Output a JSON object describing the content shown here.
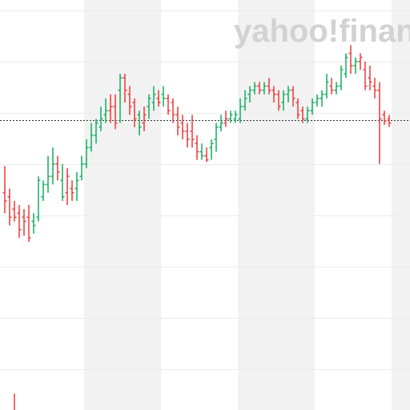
{
  "watermark": "yahoo!finance",
  "colors": {
    "up": "#1fb26b",
    "down": "#ef4444",
    "band": "#f2f2f2",
    "grid": "#ebebeb",
    "reference": "#333333",
    "watermark": "#d2d2d2",
    "background": "#ffffff"
  },
  "chart_data": {
    "type": "ohlc",
    "title": "",
    "xlabel": "",
    "ylabel": "",
    "ylim": [
      0,
      100
    ],
    "grid": true,
    "reference_level": 70.7,
    "shaded_bands_x_start": [
      16,
      48,
      80
    ],
    "bars": [
      {
        "x": 0,
        "o": 53,
        "h": 59.5,
        "l": 48,
        "c": 51,
        "dir": "down"
      },
      {
        "x": 1,
        "o": 52,
        "h": 54,
        "l": 45,
        "c": 47,
        "dir": "down"
      },
      {
        "x": 2,
        "o": 49,
        "h": 51,
        "l": 46,
        "c": 47,
        "dir": "down"
      },
      {
        "x": 3,
        "o": 48,
        "h": 50,
        "l": 42,
        "c": 44,
        "dir": "down"
      },
      {
        "x": 4,
        "o": 47,
        "h": 49,
        "l": 42.5,
        "c": 46,
        "dir": "down"
      },
      {
        "x": 5,
        "o": 47,
        "h": 50,
        "l": 41,
        "c": 42,
        "dir": "down"
      },
      {
        "x": 6,
        "o": 46,
        "h": 48,
        "l": 43,
        "c": 45,
        "dir": "up"
      },
      {
        "x": 7,
        "o": 47,
        "h": 57,
        "l": 46,
        "c": 56,
        "dir": "up"
      },
      {
        "x": 8,
        "o": 52,
        "h": 56,
        "l": 51,
        "c": 55,
        "dir": "up"
      },
      {
        "x": 9,
        "o": 55,
        "h": 62,
        "l": 53,
        "c": 57,
        "dir": "up"
      },
      {
        "x": 10,
        "o": 57,
        "h": 64,
        "l": 55,
        "c": 60,
        "dir": "up"
      },
      {
        "x": 11,
        "o": 60,
        "h": 62,
        "l": 56,
        "c": 58,
        "dir": "down"
      },
      {
        "x": 12,
        "o": 56,
        "h": 60,
        "l": 51,
        "c": 52,
        "dir": "up"
      },
      {
        "x": 13,
        "o": 53,
        "h": 59,
        "l": 50,
        "c": 57,
        "dir": "down"
      },
      {
        "x": 14,
        "o": 54,
        "h": 56,
        "l": 51,
        "c": 53,
        "dir": "down"
      },
      {
        "x": 15,
        "o": 54,
        "h": 58,
        "l": 51,
        "c": 56,
        "dir": "up"
      },
      {
        "x": 16,
        "o": 57,
        "h": 62,
        "l": 56,
        "c": 60,
        "dir": "up"
      },
      {
        "x": 17,
        "o": 60,
        "h": 66,
        "l": 59,
        "c": 64,
        "dir": "up"
      },
      {
        "x": 18,
        "o": 64,
        "h": 70,
        "l": 63,
        "c": 67,
        "dir": "up"
      },
      {
        "x": 19,
        "o": 67,
        "h": 71,
        "l": 65,
        "c": 70,
        "dir": "up"
      },
      {
        "x": 20,
        "o": 69,
        "h": 74,
        "l": 68,
        "c": 71,
        "dir": "up"
      },
      {
        "x": 21,
        "o": 72,
        "h": 76,
        "l": 70,
        "c": 73,
        "dir": "up"
      },
      {
        "x": 22,
        "o": 73,
        "h": 77,
        "l": 70,
        "c": 74,
        "dir": "down"
      },
      {
        "x": 23,
        "o": 74,
        "h": 77,
        "l": 68.5,
        "c": 70,
        "dir": "down"
      },
      {
        "x": 24,
        "o": 78,
        "h": 82,
        "l": 70,
        "c": 81,
        "dir": "up"
      },
      {
        "x": 25,
        "o": 81,
        "h": 82,
        "l": 75,
        "c": 78,
        "dir": "down"
      },
      {
        "x": 26,
        "o": 77,
        "h": 79,
        "l": 72,
        "c": 74,
        "dir": "down"
      },
      {
        "x": 27,
        "o": 75,
        "h": 76,
        "l": 69,
        "c": 71,
        "dir": "down"
      },
      {
        "x": 28,
        "o": 72,
        "h": 73,
        "l": 67,
        "c": 69,
        "dir": "up"
      },
      {
        "x": 29,
        "o": 70,
        "h": 74,
        "l": 68,
        "c": 72,
        "dir": "down"
      },
      {
        "x": 30,
        "o": 74,
        "h": 77,
        "l": 71,
        "c": 76,
        "dir": "up"
      },
      {
        "x": 31,
        "o": 75,
        "h": 79,
        "l": 73,
        "c": 77,
        "dir": "up"
      },
      {
        "x": 32,
        "o": 76,
        "h": 78,
        "l": 74,
        "c": 75,
        "dir": "down"
      },
      {
        "x": 33,
        "o": 77,
        "h": 79,
        "l": 74,
        "c": 76,
        "dir": "up"
      },
      {
        "x": 34,
        "o": 76,
        "h": 77,
        "l": 72,
        "c": 73,
        "dir": "down"
      },
      {
        "x": 35,
        "o": 75,
        "h": 76,
        "l": 70,
        "c": 72,
        "dir": "down"
      },
      {
        "x": 36,
        "o": 72,
        "h": 74,
        "l": 67,
        "c": 69,
        "dir": "down"
      },
      {
        "x": 37,
        "o": 70,
        "h": 72,
        "l": 66,
        "c": 68,
        "dir": "down"
      },
      {
        "x": 38,
        "o": 68,
        "h": 70,
        "l": 64,
        "c": 66,
        "dir": "down"
      },
      {
        "x": 39,
        "o": 68,
        "h": 72,
        "l": 64,
        "c": 66,
        "dir": "down"
      },
      {
        "x": 40,
        "o": 65,
        "h": 67,
        "l": 61,
        "c": 63,
        "dir": "down"
      },
      {
        "x": 41,
        "o": 63,
        "h": 65,
        "l": 61,
        "c": 62,
        "dir": "up"
      },
      {
        "x": 42,
        "o": 62,
        "h": 64,
        "l": 60.5,
        "c": 61,
        "dir": "down"
      },
      {
        "x": 43,
        "o": 64,
        "h": 66,
        "l": 61,
        "c": 65,
        "dir": "up"
      },
      {
        "x": 44,
        "o": 66,
        "h": 70,
        "l": 63,
        "c": 69,
        "dir": "up"
      },
      {
        "x": 45,
        "o": 69,
        "h": 72,
        "l": 68,
        "c": 70,
        "dir": "up"
      },
      {
        "x": 46,
        "o": 70,
        "h": 73,
        "l": 69,
        "c": 71,
        "dir": "down"
      },
      {
        "x": 47,
        "o": 71,
        "h": 73,
        "l": 70,
        "c": 72,
        "dir": "up"
      },
      {
        "x": 48,
        "o": 71,
        "h": 73,
        "l": 70,
        "c": 72,
        "dir": "up"
      },
      {
        "x": 49,
        "o": 71,
        "h": 76,
        "l": 70,
        "c": 74,
        "dir": "up"
      },
      {
        "x": 50,
        "o": 74,
        "h": 78,
        "l": 73,
        "c": 76,
        "dir": "up"
      },
      {
        "x": 51,
        "o": 77,
        "h": 79,
        "l": 75,
        "c": 78,
        "dir": "up"
      },
      {
        "x": 52,
        "o": 78,
        "h": 80,
        "l": 77,
        "c": 79,
        "dir": "up"
      },
      {
        "x": 53,
        "o": 79,
        "h": 80,
        "l": 77,
        "c": 78,
        "dir": "down"
      },
      {
        "x": 54,
        "o": 78,
        "h": 80,
        "l": 77,
        "c": 79,
        "dir": "up"
      },
      {
        "x": 55,
        "o": 79,
        "h": 81,
        "l": 77,
        "c": 78,
        "dir": "down"
      },
      {
        "x": 56,
        "o": 78,
        "h": 79,
        "l": 75,
        "c": 77,
        "dir": "down"
      },
      {
        "x": 57,
        "o": 77,
        "h": 78,
        "l": 73,
        "c": 74,
        "dir": "down"
      },
      {
        "x": 58,
        "o": 75,
        "h": 78,
        "l": 73,
        "c": 77,
        "dir": "up"
      },
      {
        "x": 59,
        "o": 77,
        "h": 79,
        "l": 75,
        "c": 78,
        "dir": "up"
      },
      {
        "x": 60,
        "o": 78,
        "h": 79,
        "l": 74,
        "c": 76,
        "dir": "down"
      },
      {
        "x": 61,
        "o": 75,
        "h": 76,
        "l": 71,
        "c": 72,
        "dir": "down"
      },
      {
        "x": 62,
        "o": 73,
        "h": 74,
        "l": 70,
        "c": 71,
        "dir": "down"
      },
      {
        "x": 63,
        "o": 71,
        "h": 74,
        "l": 70,
        "c": 73,
        "dir": "up"
      },
      {
        "x": 64,
        "o": 73,
        "h": 76,
        "l": 72,
        "c": 75,
        "dir": "up"
      },
      {
        "x": 65,
        "o": 75,
        "h": 77,
        "l": 74,
        "c": 76,
        "dir": "up"
      },
      {
        "x": 66,
        "o": 76,
        "h": 78,
        "l": 74,
        "c": 77,
        "dir": "up"
      },
      {
        "x": 67,
        "o": 77,
        "h": 82,
        "l": 76,
        "c": 80,
        "dir": "up"
      },
      {
        "x": 68,
        "o": 79,
        "h": 81,
        "l": 77,
        "c": 78,
        "dir": "down"
      },
      {
        "x": 69,
        "o": 78,
        "h": 80,
        "l": 77,
        "c": 79,
        "dir": "up"
      },
      {
        "x": 70,
        "o": 79,
        "h": 84,
        "l": 78,
        "c": 83,
        "dir": "up"
      },
      {
        "x": 71,
        "o": 82,
        "h": 87,
        "l": 81,
        "c": 86,
        "dir": "up"
      },
      {
        "x": 72,
        "o": 87,
        "h": 89,
        "l": 82,
        "c": 84,
        "dir": "down"
      },
      {
        "x": 73,
        "o": 84,
        "h": 86,
        "l": 82,
        "c": 85,
        "dir": "up"
      },
      {
        "x": 74,
        "o": 85,
        "h": 87,
        "l": 83,
        "c": 86,
        "dir": "down"
      },
      {
        "x": 75,
        "o": 83,
        "h": 85,
        "l": 78,
        "c": 79,
        "dir": "down"
      },
      {
        "x": 76,
        "o": 81,
        "h": 84,
        "l": 78,
        "c": 80,
        "dir": "down"
      },
      {
        "x": 77,
        "o": 79,
        "h": 81,
        "l": 76,
        "c": 78,
        "dir": "down"
      },
      {
        "x": 78,
        "o": 78,
        "h": 80,
        "l": 60,
        "c": 71,
        "dir": "down"
      },
      {
        "x": 79,
        "o": 72,
        "h": 73,
        "l": 69.5,
        "c": 70.5,
        "dir": "down"
      },
      {
        "x": 80,
        "o": 71,
        "h": 72,
        "l": 69,
        "c": 70,
        "dir": "down"
      }
    ],
    "extra_marks": [
      {
        "x": 2,
        "top": 4,
        "bottom": 0,
        "dir": "down"
      }
    ]
  }
}
